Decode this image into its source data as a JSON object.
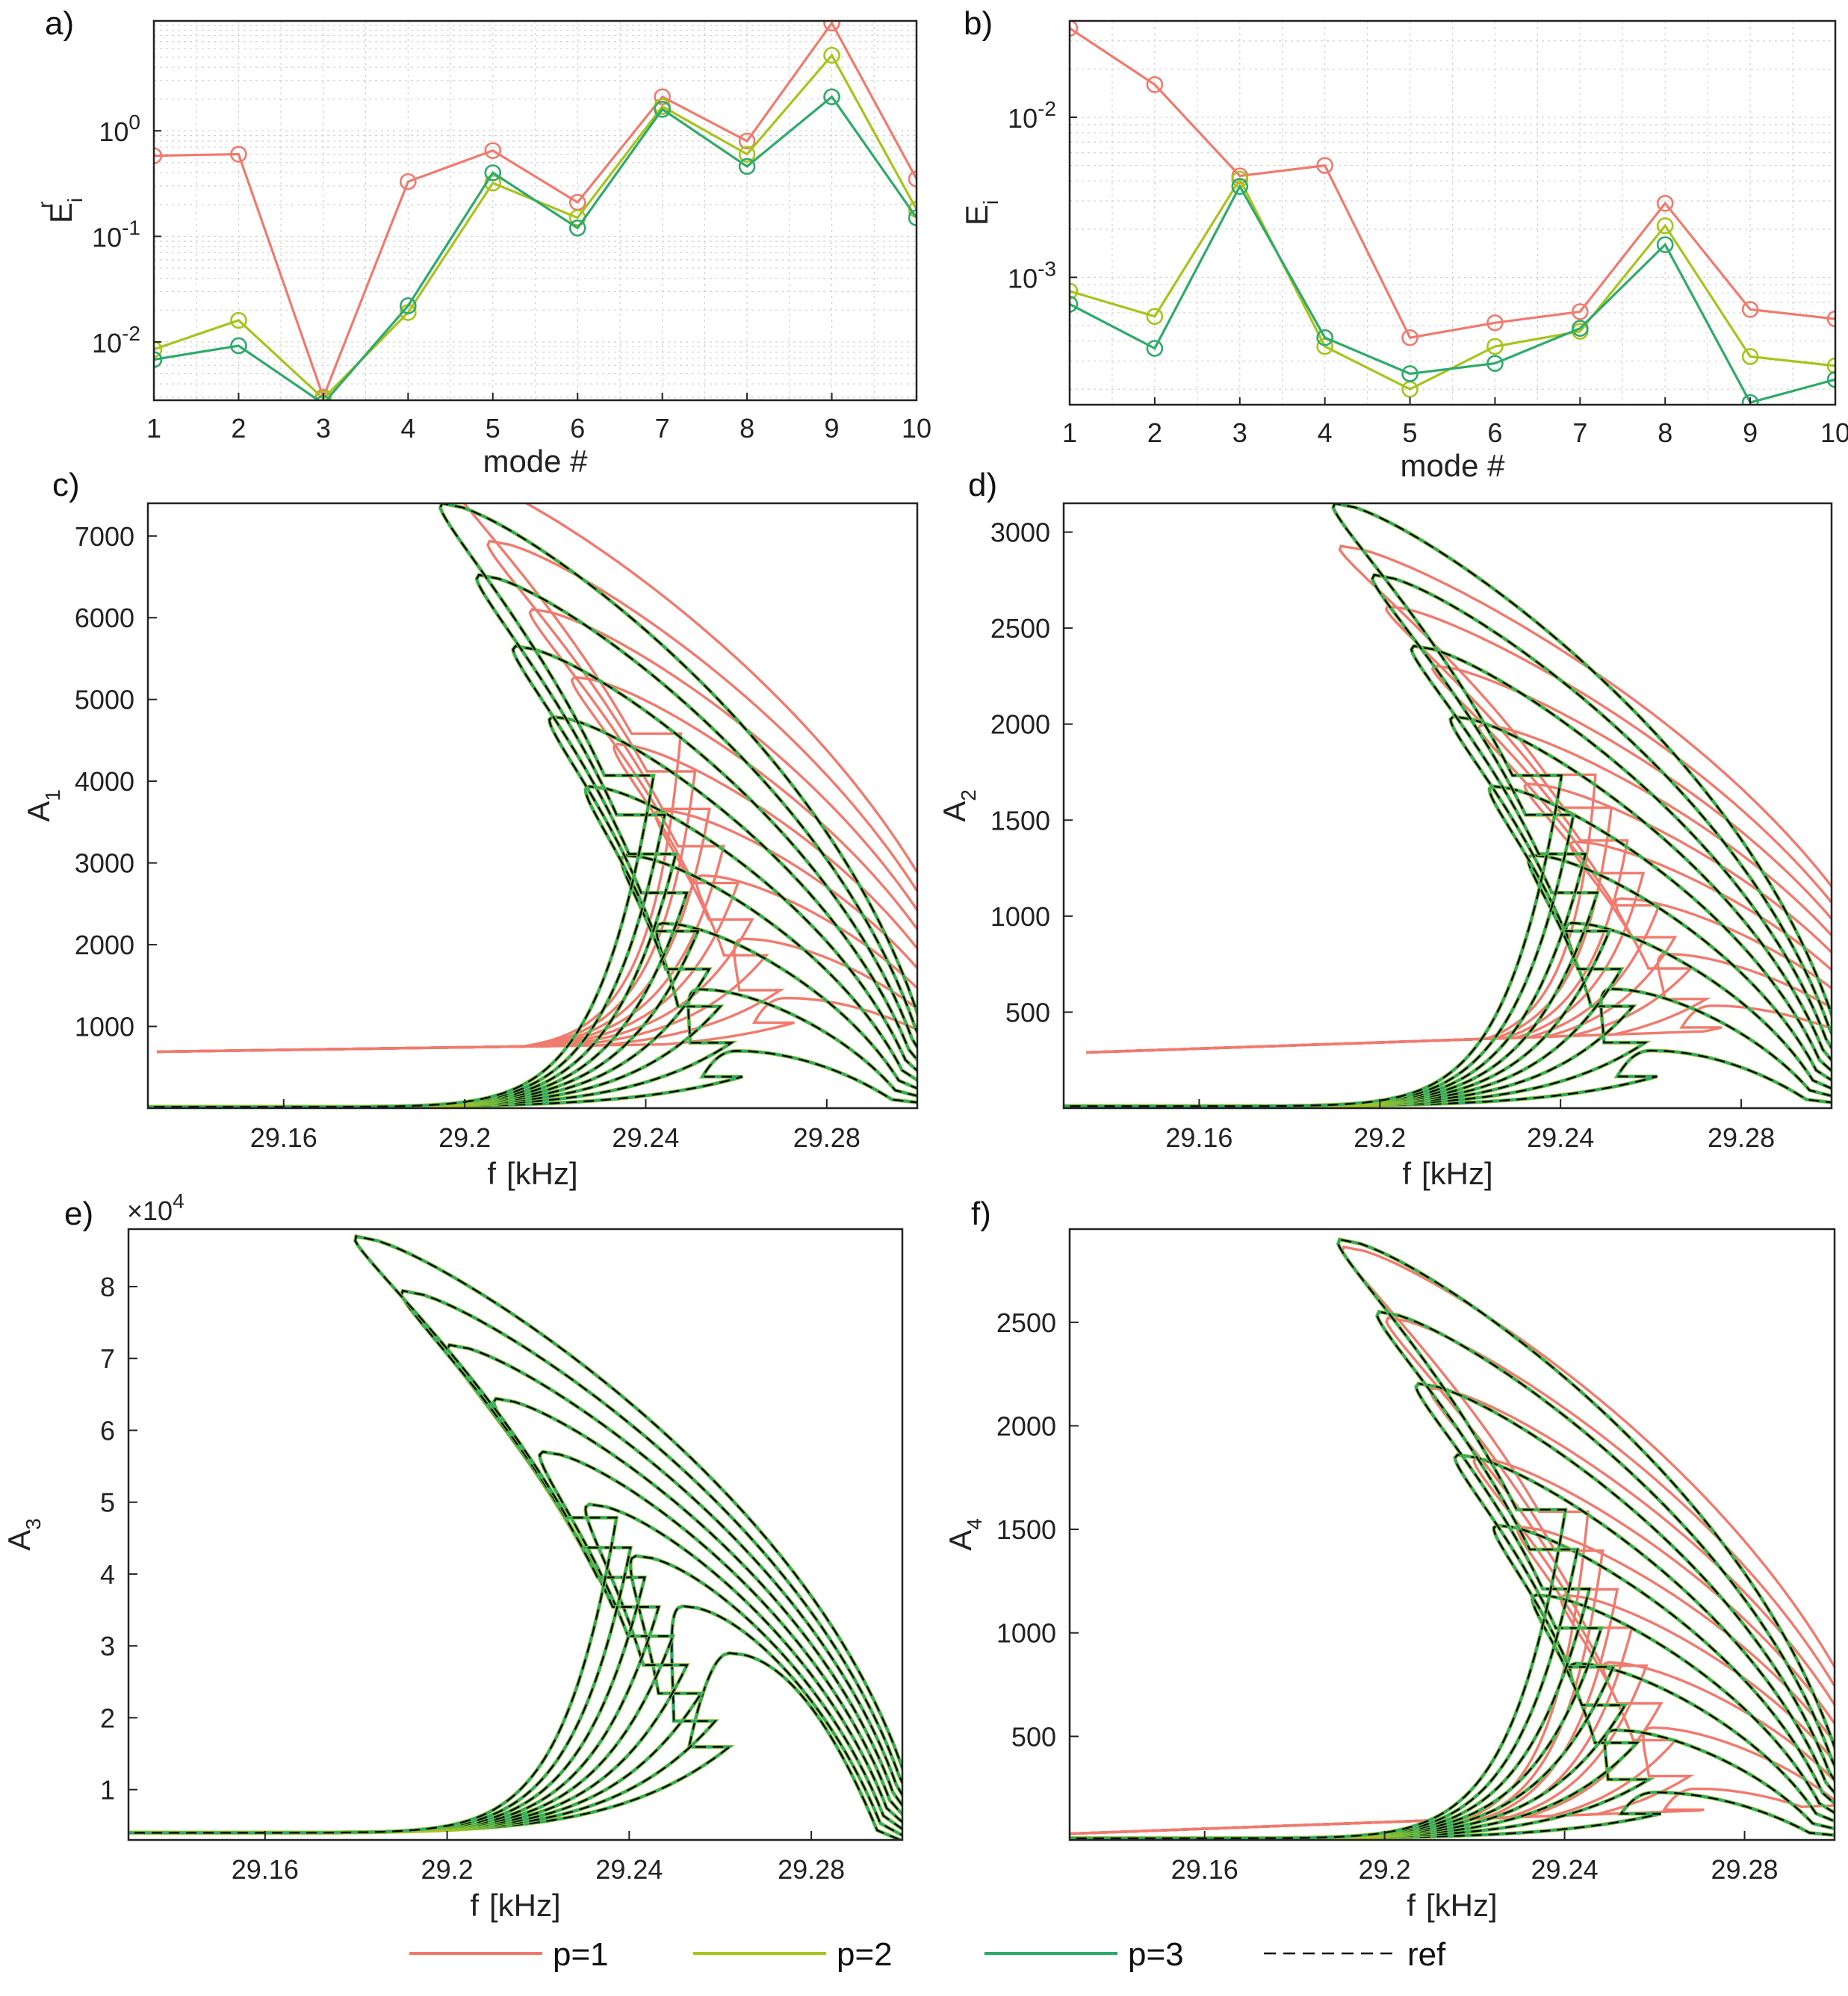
{
  "colors": {
    "p1": "#f07a6e",
    "p2": "#a8c41c",
    "p3": "#2eaa6a",
    "ref": "#000000"
  },
  "legend": {
    "placement": "bottom",
    "items": [
      {
        "label": "p=1",
        "color_key": "p1",
        "dashed": false
      },
      {
        "label": "p=2",
        "color_key": "p2",
        "dashed": false
      },
      {
        "label": "p=3",
        "color_key": "p3",
        "dashed": false
      },
      {
        "label": "ref",
        "color_key": "ref",
        "dashed": true
      }
    ]
  },
  "chart_data": [
    {
      "id": "a",
      "panel_label": "a)",
      "type": "line",
      "yscale": "log",
      "xlabel": "mode #",
      "ylabel_main": "E",
      "ylabel_sub": "i",
      "ylabel_sup": "r",
      "xlim": [
        1,
        10
      ],
      "ylim": [
        0.0028,
        11
      ],
      "xticks": [
        1,
        2,
        3,
        4,
        5,
        6,
        7,
        8,
        9,
        10
      ],
      "yticks": [
        {
          "v": 0.01,
          "b": "10",
          "e": "-2"
        },
        {
          "v": 0.1,
          "b": "10",
          "e": "-1"
        },
        {
          "v": 1,
          "b": "10",
          "e": "0"
        }
      ],
      "grid": true,
      "x": [
        1,
        2,
        3,
        4,
        5,
        6,
        7,
        8,
        9,
        10
      ],
      "series": [
        {
          "name": "p=1",
          "color_key": "p1",
          "values": [
            0.58,
            0.6,
            0.003,
            0.33,
            0.65,
            0.21,
            2.1,
            0.8,
            10.5,
            0.35
          ]
        },
        {
          "name": "p=2",
          "color_key": "p2",
          "values": [
            0.0085,
            0.016,
            0.0029,
            0.019,
            0.32,
            0.15,
            1.7,
            0.6,
            5.2,
            0.18
          ]
        },
        {
          "name": "p=3",
          "color_key": "p3",
          "values": [
            0.0068,
            0.0092,
            0.0026,
            0.022,
            0.4,
            0.12,
            1.6,
            0.46,
            2.1,
            0.15
          ]
        }
      ]
    },
    {
      "id": "b",
      "panel_label": "b)",
      "type": "line",
      "yscale": "log",
      "xlabel": "mode #",
      "ylabel_main": "E",
      "ylabel_sub": "i",
      "ylabel_sup": "",
      "xlim": [
        1,
        10
      ],
      "ylim": [
        0.00016,
        0.04
      ],
      "xticks": [
        1,
        2,
        3,
        4,
        5,
        6,
        7,
        8,
        9,
        10
      ],
      "yticks": [
        {
          "v": 0.001,
          "b": "10",
          "e": "-3"
        },
        {
          "v": 0.01,
          "b": "10",
          "e": "-2"
        }
      ],
      "grid": true,
      "x": [
        1,
        2,
        3,
        4,
        5,
        6,
        7,
        8,
        9,
        10
      ],
      "series": [
        {
          "name": "p=1",
          "color_key": "p1",
          "values": [
            0.036,
            0.016,
            0.0043,
            0.005,
            0.00042,
            0.00052,
            0.00061,
            0.0029,
            0.00063,
            0.00055
          ]
        },
        {
          "name": "p=2",
          "color_key": "p2",
          "values": [
            0.00082,
            0.00057,
            0.0041,
            0.00037,
            0.0002,
            0.00037,
            0.00046,
            0.0021,
            0.00032,
            0.00028
          ]
        },
        {
          "name": "p=3",
          "color_key": "p3",
          "values": [
            0.00068,
            0.00036,
            0.0037,
            0.00042,
            0.00025,
            0.00029,
            0.00048,
            0.0016,
            0.000165,
            0.00023
          ]
        }
      ]
    },
    {
      "id": "c",
      "panel_label": "c)",
      "type": "line",
      "yscale": "linear",
      "xlabel": "f",
      "xunit": "[kHz]",
      "ylabel_main": "A",
      "ylabel_sub": "1",
      "ylabel_sup": "",
      "xlim": [
        29.13,
        29.3
      ],
      "ylim": [
        0,
        7400
      ],
      "xticks": [
        29.16,
        29.2,
        29.24,
        29.28
      ],
      "xtick_labels": [
        "29.16",
        "29.2",
        "29.24",
        "29.28"
      ],
      "yticks": [
        1000,
        2000,
        3000,
        4000,
        5000,
        6000,
        7000
      ],
      "multiplier": "",
      "frc": {
        "count": 9,
        "peak_f_first": 29.26,
        "peak_f_last": 29.195,
        "peak_a_first": 700,
        "peak_a_last": 7400,
        "base_a": 15,
        "p1_offset_f": 0.012,
        "p1_floor_a": 690,
        "p1_peak_scale": 0.96
      }
    },
    {
      "id": "d",
      "panel_label": "d)",
      "type": "line",
      "yscale": "linear",
      "xlabel": "f",
      "xunit": "[kHz]",
      "ylabel_main": "A",
      "ylabel_sub": "2",
      "ylabel_sup": "",
      "xlim": [
        29.13,
        29.3
      ],
      "ylim": [
        0,
        3150
      ],
      "xticks": [
        29.16,
        29.2,
        29.24,
        29.28
      ],
      "xtick_labels": [
        "29.16",
        "29.2",
        "29.24",
        "29.28"
      ],
      "yticks": [
        500,
        1000,
        1500,
        2000,
        2500,
        3000
      ],
      "multiplier": "",
      "frc": {
        "count": 9,
        "peak_f_first": 29.26,
        "peak_f_last": 29.19,
        "peak_a_first": 300,
        "peak_a_last": 3150,
        "base_a": 10,
        "p1_offset_f": 0.015,
        "p1_floor_a": 290,
        "p1_peak_scale": 0.84
      }
    },
    {
      "id": "e",
      "panel_label": "e)",
      "type": "line",
      "yscale": "linear",
      "xlabel": "f",
      "xunit": "[kHz]",
      "ylabel_main": "A",
      "ylabel_sub": "3",
      "ylabel_sup": "",
      "xlim": [
        29.13,
        29.3
      ],
      "ylim": [
        3000,
        88000
      ],
      "xticks": [
        29.16,
        29.2,
        29.24,
        29.28
      ],
      "xtick_labels": [
        "29.16",
        "29.2",
        "29.24",
        "29.28"
      ],
      "yticks": [
        10000,
        20000,
        30000,
        40000,
        50000,
        60000,
        70000,
        80000
      ],
      "ytick_labels": [
        "1",
        "2",
        "3",
        "4",
        "5",
        "6",
        "7",
        "8"
      ],
      "multiplier_base": "×10",
      "multiplier_exp": "4",
      "frc": {
        "count": 9,
        "peak_f_first": 29.262,
        "peak_f_last": 29.18,
        "peak_a_first": 29000,
        "peak_a_last": 87000,
        "base_a": 4000,
        "p1_offset_f": 0,
        "p1_floor_a": 0,
        "p1_peak_scale": 1
      }
    },
    {
      "id": "f",
      "panel_label": "f)",
      "type": "line",
      "yscale": "linear",
      "xlabel": "f",
      "xunit": "[kHz]",
      "ylabel_main": "A",
      "ylabel_sub": "4",
      "ylabel_sup": "",
      "xlim": [
        29.13,
        29.3
      ],
      "ylim": [
        0,
        2950
      ],
      "xticks": [
        29.16,
        29.2,
        29.24,
        29.28
      ],
      "xtick_labels": [
        "29.16",
        "29.2",
        "29.24",
        "29.28"
      ],
      "yticks": [
        500,
        1000,
        1500,
        2000,
        2500
      ],
      "multiplier": "",
      "frc": {
        "count": 9,
        "peak_f_first": 29.26,
        "peak_f_last": 29.19,
        "peak_a_first": 230,
        "peak_a_last": 2900,
        "base_a": 8,
        "p1_offset_f": 0.01,
        "p1_floor_a": 30,
        "p1_peak_scale": 0.98
      }
    }
  ]
}
